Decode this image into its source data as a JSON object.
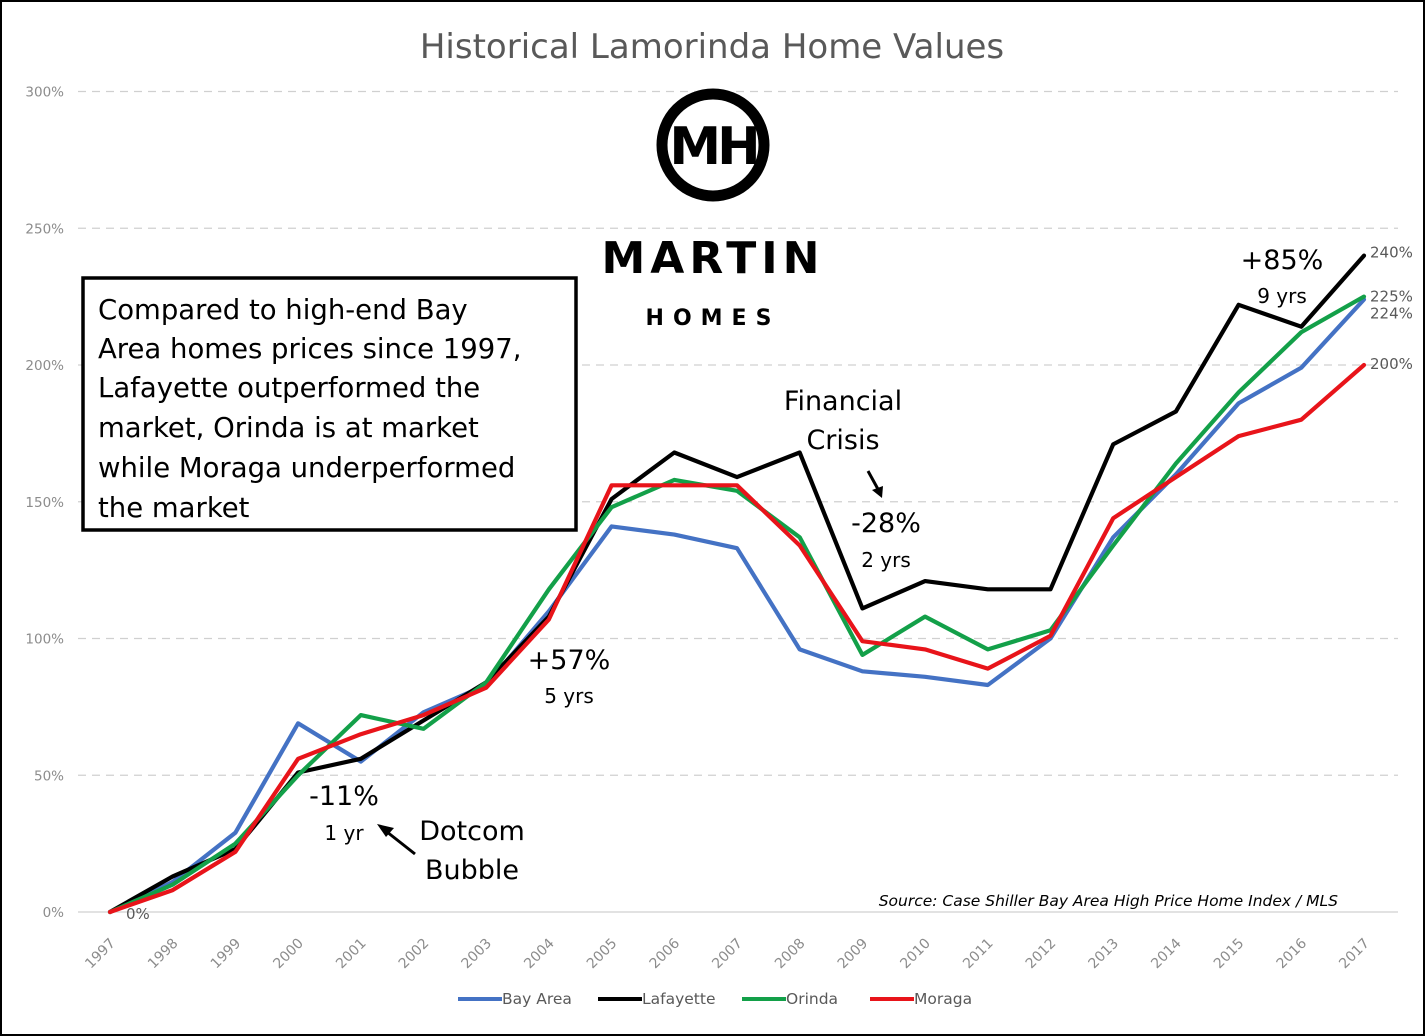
{
  "chart_data": {
    "type": "line",
    "title": "Historical Lamorinda Home Values",
    "xlabel": "",
    "ylabel": "",
    "x": [
      "1997",
      "1998",
      "1999",
      "2000",
      "2001",
      "2002",
      "2003",
      "2004",
      "2005",
      "2006",
      "2007",
      "2008",
      "2009",
      "2010",
      "2011",
      "2012",
      "2013",
      "2014",
      "2015",
      "2016",
      "2017"
    ],
    "ylim": [
      0,
      300
    ],
    "yticks": [
      0,
      50,
      100,
      150,
      200,
      250,
      300
    ],
    "ytick_labels": [
      "0%",
      "50%",
      "100%",
      "150%",
      "200%",
      "250%",
      "300%"
    ],
    "grid": "horizontal dashed",
    "legend_position": "bottom",
    "series": [
      {
        "name": "Bay Area",
        "color": "#4472c4",
        "values": [
          0,
          11,
          29,
          69,
          55,
          73,
          83,
          110,
          141,
          138,
          133,
          96,
          88,
          86,
          83,
          100,
          137,
          160,
          186,
          199,
          224
        ]
      },
      {
        "name": "Lafayette",
        "color": "#000000",
        "values": [
          0,
          13,
          23,
          51,
          56,
          70,
          84,
          108,
          151,
          168,
          159,
          168,
          111,
          121,
          118,
          118,
          171,
          183,
          222,
          214,
          240
        ]
      },
      {
        "name": "Orinda",
        "color": "#13a049",
        "values": [
          0,
          10,
          25,
          50,
          72,
          67,
          84,
          118,
          148,
          158,
          154,
          137,
          94,
          108,
          96,
          103,
          134,
          164,
          190,
          212,
          225
        ]
      },
      {
        "name": "Moraga",
        "color": "#e8141a",
        "values": [
          0,
          8,
          22,
          56,
          65,
          72,
          82,
          107,
          156,
          156,
          156,
          134,
          99,
          96,
          89,
          101,
          144,
          159,
          174,
          180,
          200
        ]
      }
    ],
    "end_labels": [
      {
        "series": "Lafayette",
        "text": "240%"
      },
      {
        "series": "Orinda",
        "text": "225%"
      },
      {
        "series": "Bay Area",
        "text": "224%"
      },
      {
        "series": "Moraga",
        "text": "200%"
      }
    ],
    "start_label": "0%",
    "annotations": {
      "dotcom_change": "-11%",
      "dotcom_duration": "1 yr",
      "dotcom_line1": "Dotcom",
      "dotcom_line2": "Bubble",
      "rise1_change": "+57%",
      "rise1_duration": "5 yrs",
      "crisis_line1": "Financial",
      "crisis_line2": "Crisis",
      "crisis_change": "-28%",
      "crisis_duration": "2 yrs",
      "rise2_change": "+85%",
      "rise2_duration": "9 yrs"
    },
    "callout_lines": [
      "Compared to high-end Bay",
      "Area homes prices since 1997,",
      "Lafayette outperformed the",
      "market, Orinda is at market",
      "while Moraga underperformed",
      "the market"
    ],
    "source": "Source: Case Shiller Bay Area High Price Home Index / MLS"
  },
  "logo": {
    "monogram": "MH",
    "name": "MARTIN",
    "tagline": "HOMES"
  }
}
